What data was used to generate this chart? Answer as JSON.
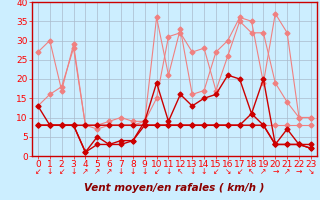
{
  "xlabel": "Vent moyen/en rafales ( km/h )",
  "background_color": "#cceeff",
  "grid_color": "#aabbcc",
  "xlim": [
    -0.5,
    23.5
  ],
  "ylim": [
    0,
    40
  ],
  "yticks": [
    0,
    5,
    10,
    15,
    20,
    25,
    30,
    35,
    40
  ],
  "xticks": [
    0,
    1,
    2,
    3,
    4,
    5,
    6,
    7,
    8,
    9,
    10,
    11,
    12,
    13,
    14,
    15,
    16,
    17,
    18,
    19,
    20,
    21,
    22,
    23
  ],
  "lines_light": [
    [
      27,
      30,
      17,
      29,
      8,
      7,
      8,
      8,
      8,
      9,
      36,
      21,
      33,
      16,
      17,
      27,
      30,
      36,
      35,
      19,
      37,
      32,
      10,
      10
    ],
    [
      13,
      16,
      18,
      28,
      8,
      8,
      9,
      10,
      9,
      9,
      15,
      31,
      32,
      27,
      28,
      17,
      26,
      35,
      32,
      32,
      19,
      14,
      10,
      10
    ],
    [
      8,
      8,
      8,
      8,
      8,
      8,
      8,
      8,
      8,
      8,
      8,
      8,
      8,
      8,
      8,
      8,
      8,
      8,
      8,
      8,
      8,
      8,
      8,
      8
    ]
  ],
  "lines_dark": [
    [
      13,
      8,
      8,
      8,
      1,
      5,
      3,
      4,
      4,
      9,
      19,
      9,
      16,
      13,
      15,
      16,
      21,
      20,
      11,
      20,
      3,
      7,
      3,
      2
    ],
    [
      8,
      8,
      8,
      8,
      8,
      8,
      8,
      8,
      8,
      8,
      8,
      8,
      8,
      8,
      8,
      8,
      8,
      8,
      11,
      8,
      3,
      3,
      3,
      3
    ],
    [
      8,
      8,
      8,
      8,
      1,
      3,
      3,
      3,
      4,
      8,
      8,
      8,
      8,
      8,
      8,
      8,
      8,
      8,
      8,
      8,
      3,
      3,
      3,
      2
    ]
  ],
  "color_light": "#f08080",
  "color_dark": "#cc0000",
  "marker_size": 2.5,
  "linewidth_light": 0.8,
  "linewidth_dark": 1.0,
  "arrows": [
    "↙",
    "↓",
    "↙",
    "↓",
    "↗",
    "↗",
    "↗",
    "↓",
    "↓",
    "↓",
    "↙",
    "↓",
    "↖",
    "↓",
    "↓",
    "↙",
    "↘",
    "↙",
    "↖",
    "↗",
    "→",
    "↗",
    "→",
    "↘"
  ],
  "xlabel_fontsize": 7.5,
  "tick_fontsize": 6.5,
  "arrow_fontsize": 5.5
}
